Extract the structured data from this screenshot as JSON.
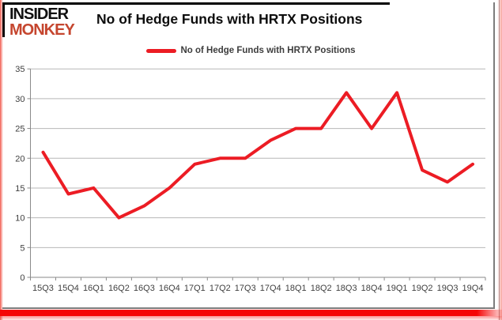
{
  "brand": {
    "line1": "INSIDER",
    "line2": "MONKEY",
    "accent_color": "#c5462f"
  },
  "header": {
    "title": "No of Hedge Funds with HRTX Positions"
  },
  "legend": {
    "label": "No of Hedge Funds with HRTX Positions"
  },
  "colors": {
    "line": "#ec1c24",
    "gridline": "#b7b7b7",
    "axis": "#8a8a8a",
    "tick_label": "#3f3f3f",
    "bottom_bar": "#f50606"
  },
  "chart_data": {
    "type": "line",
    "title": "No of Hedge Funds with HRTX Positions",
    "categories": [
      "15Q3",
      "15Q4",
      "16Q1",
      "16Q2",
      "16Q3",
      "16Q4",
      "17Q1",
      "17Q2",
      "17Q3",
      "17Q4",
      "18Q1",
      "18Q2",
      "18Q3",
      "18Q4",
      "19Q1",
      "19Q2",
      "19Q3",
      "19Q4"
    ],
    "series": [
      {
        "name": "No of Hedge Funds with HRTX Positions",
        "values": [
          21,
          14,
          15,
          10,
          12,
          15,
          19,
          20,
          20,
          23,
          25,
          25,
          31,
          25,
          31,
          18,
          16,
          19
        ],
        "color": "#ec1c24"
      }
    ],
    "xlabel": "",
    "ylabel": "",
    "ylim": [
      0,
      35
    ],
    "ytick_step": 5,
    "grid": true,
    "legend_position": "top-center"
  }
}
